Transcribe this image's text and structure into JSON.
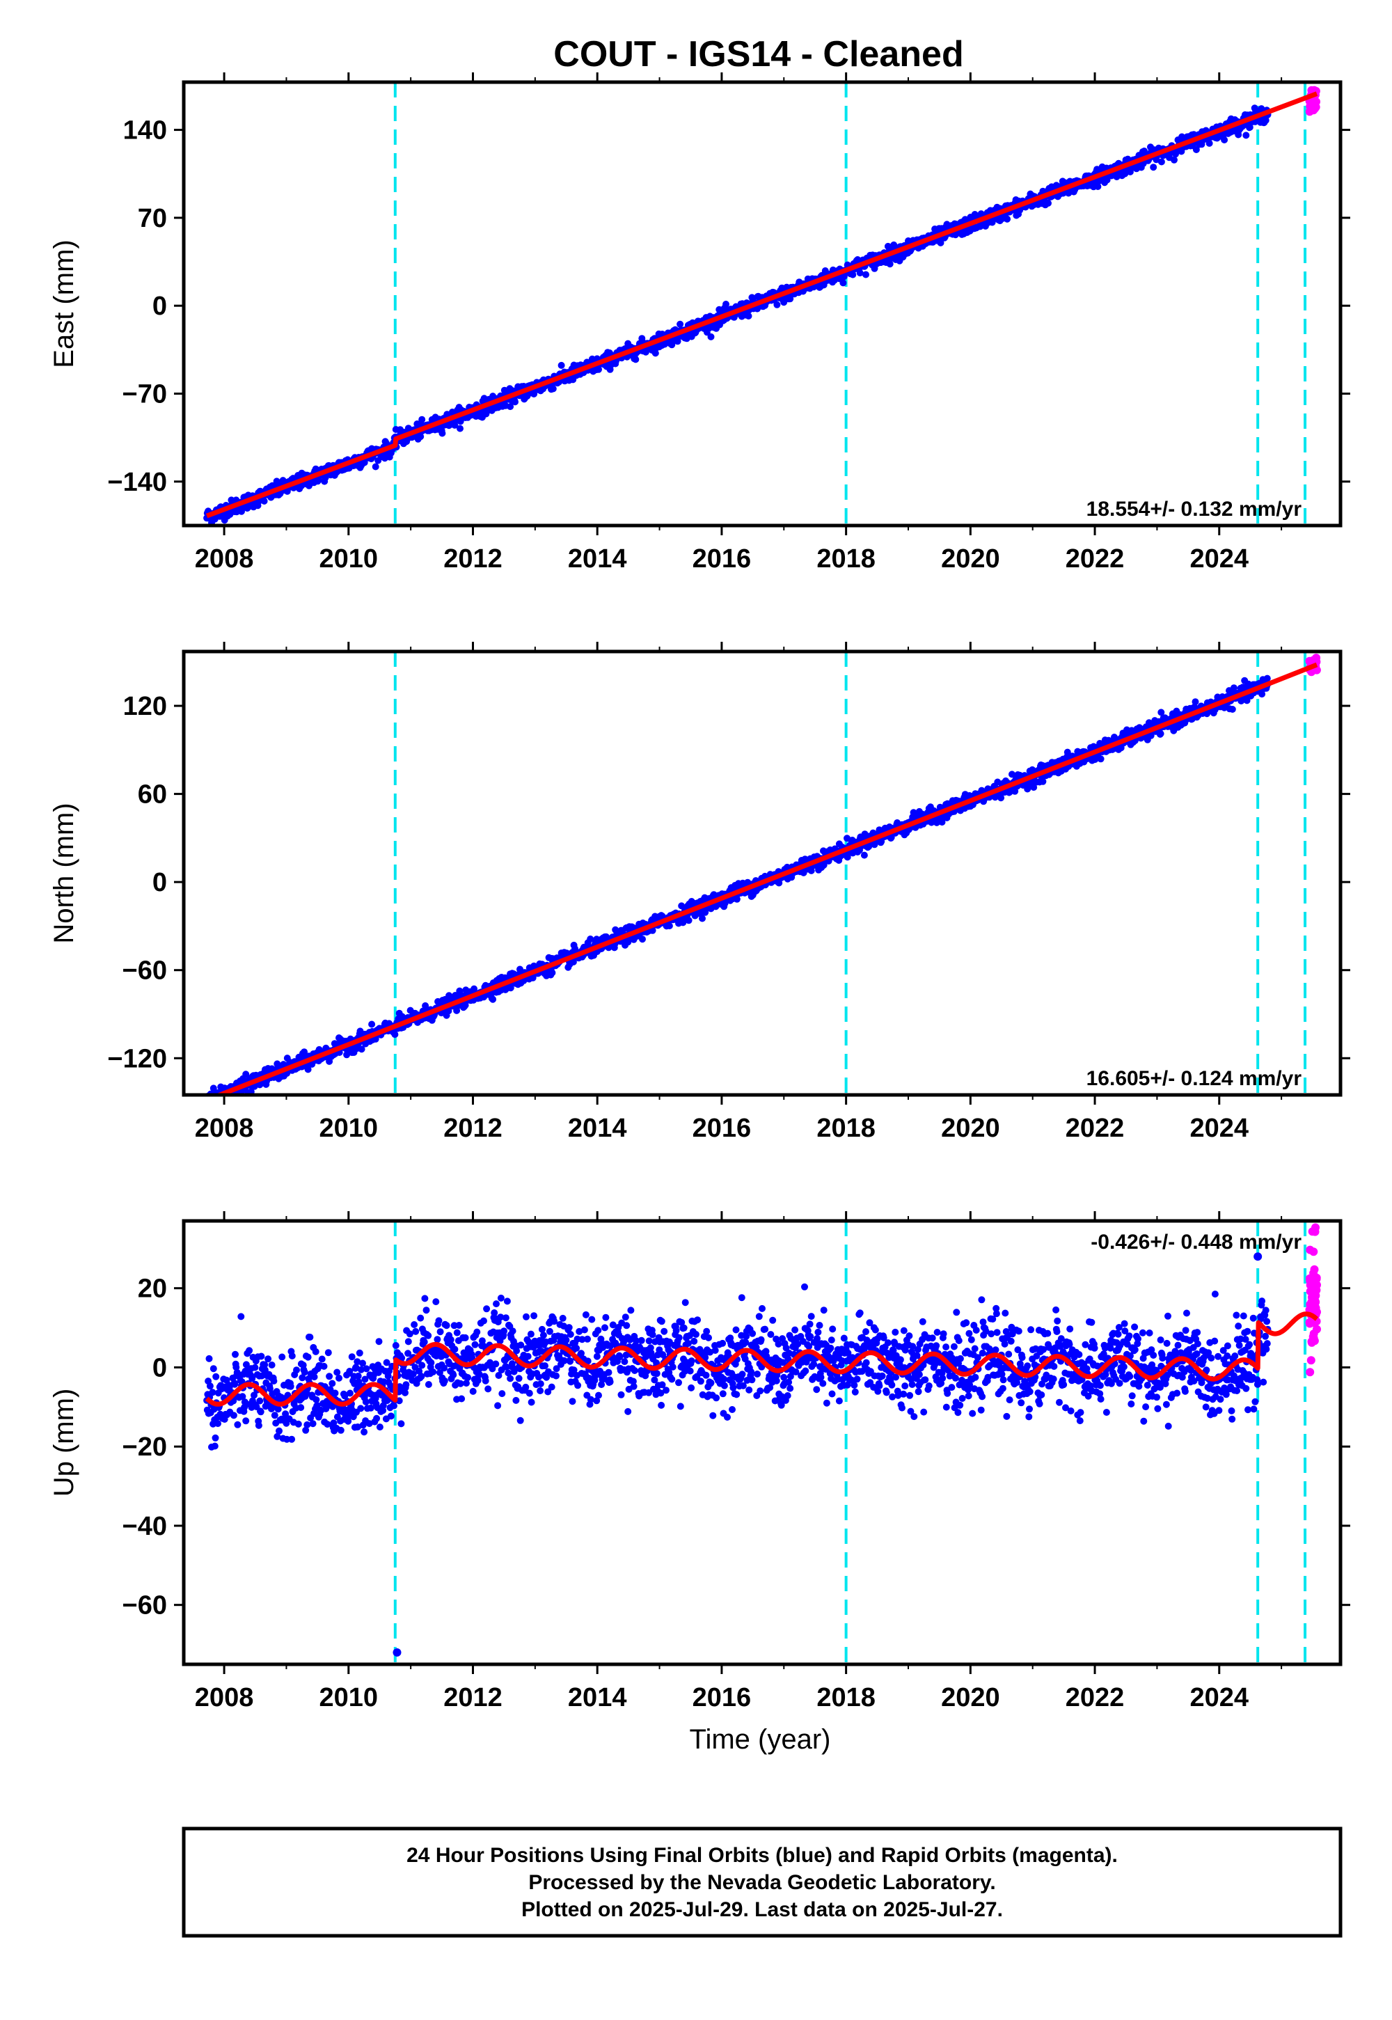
{
  "figure": {
    "title": "COUT  - IGS14 - Cleaned",
    "xlabel": "Time (year)",
    "footer": [
      "24 Hour Positions Using Final Orbits (blue) and Rapid Orbits (magenta).",
      "Processed by the Nevada Geodetic Laboratory.",
      "Plotted on 2025-Jul-29. Last data on 2025-Jul-27."
    ]
  },
  "colors": {
    "final_orbits": "#0000ff",
    "rapid_orbits": "#ff00ff",
    "model": "#ff0000",
    "steps": "#00e5ee",
    "frame": "#000000"
  },
  "chart_data": [
    {
      "type": "scatter",
      "name": "east",
      "ylabel": "East (mm)",
      "rate_label": "18.554+/- 0.132 mm/yr",
      "rate_position": "bottom-right",
      "xlim": [
        2007.35,
        2025.95
      ],
      "ylim": [
        -175,
        178
      ],
      "yticks": [
        -140,
        -70,
        0,
        70,
        140
      ],
      "xticks": [
        2008,
        2010,
        2012,
        2014,
        2016,
        2018,
        2020,
        2022,
        2024
      ],
      "steps": [
        2010.75,
        2018.0,
        2024.62,
        2025.38
      ],
      "final_orbits": {
        "start": 2007.72,
        "end": 2024.78,
        "rate": 18.554,
        "offset_at_2016": -14.5,
        "scatter": 3.0,
        "steps": [
          [
            2010.75,
            5
          ]
        ]
      },
      "rapid_orbits": {
        "start": 2025.45,
        "end": 2025.57,
        "center": 163,
        "scatter": 5,
        "count": 30
      },
      "model": [
        [
          2007.72,
          -167.3
        ],
        [
          2010.75,
          -111.2
        ],
        [
          2010.76,
          -106.0
        ],
        [
          2024.62,
          151.2
        ],
        [
          2025.57,
          168.8
        ]
      ],
      "gaps": []
    },
    {
      "type": "scatter",
      "name": "north",
      "ylabel": "North (mm)",
      "rate_label": "16.605+/- 0.124 mm/yr",
      "rate_position": "bottom-right",
      "xlim": [
        2007.35,
        2025.95
      ],
      "ylim": [
        -145,
        157
      ],
      "yticks": [
        -120,
        -60,
        0,
        60,
        120
      ],
      "xticks": [
        2008,
        2010,
        2012,
        2014,
        2016,
        2018,
        2020,
        2022,
        2024
      ],
      "steps": [
        2010.75,
        2018.0,
        2024.62,
        2025.38
      ],
      "final_orbits": {
        "start": 2007.72,
        "end": 2024.78,
        "rate": 16.605,
        "offset_at_2016": -11.0,
        "scatter": 2.6,
        "steps": []
      },
      "rapid_orbits": {
        "start": 2025.45,
        "end": 2025.57,
        "center": 148,
        "scatter": 3,
        "count": 30
      },
      "model": [
        [
          2007.72,
          -148.5
        ],
        [
          2024.62,
          132.1
        ],
        [
          2025.57,
          148.0
        ]
      ],
      "gaps": []
    },
    {
      "type": "scatter",
      "name": "up",
      "ylabel": "Up (mm)",
      "rate_label": "-0.426+/- 0.448 mm/yr",
      "rate_position": "top-right",
      "xlim": [
        2007.35,
        2025.95
      ],
      "ylim": [
        -75,
        37
      ],
      "yticks": [
        -60,
        -40,
        -20,
        0,
        20
      ],
      "xticks": [
        2008,
        2010,
        2012,
        2014,
        2016,
        2018,
        2020,
        2022,
        2024
      ],
      "steps": [
        2010.75,
        2018.0,
        2024.62,
        2025.38
      ],
      "final_orbits": {
        "start": 2007.72,
        "end": 2024.78,
        "rate": -0.426,
        "offset_at_2016": 0,
        "scatter": 5.0,
        "steps": []
      },
      "rapid_orbits": {
        "start": 2025.45,
        "end": 2025.57,
        "center": 16,
        "scatter": 7,
        "count": 60
      },
      "outliers": [
        [
          2010.78,
          -72
        ],
        [
          2024.62,
          28
        ]
      ],
      "model_segments": [
        {
          "from": 2007.72,
          "to": 2010.75,
          "base": -6.8,
          "rate": 0,
          "amp": 2.5
        },
        {
          "from": 2010.76,
          "to": 2024.62,
          "base": 3.5,
          "rate": -0.3,
          "amp": 2.5
        },
        {
          "from": 2024.63,
          "to": 2025.57,
          "base": 11.0,
          "rate": 0,
          "amp": 2.5
        }
      ],
      "gaps": []
    }
  ]
}
